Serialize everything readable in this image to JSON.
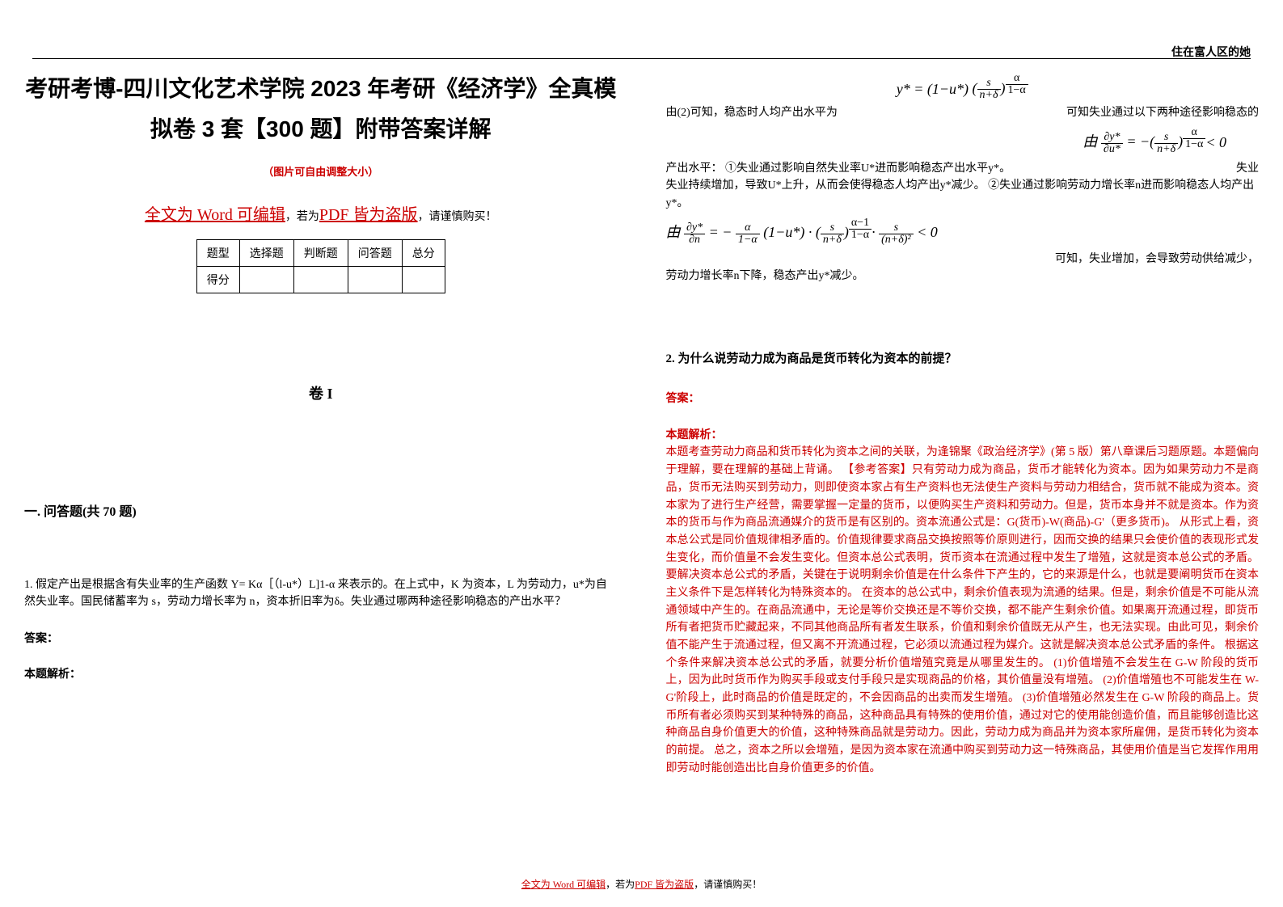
{
  "header": {
    "author": "住在富人区的她"
  },
  "title": {
    "line": "考研考博-四川文化艺术学院 2023 年考研《经济学》全真模拟卷 3 套【300 题】附带答案详解"
  },
  "subtitle": "（图片可自由调整大小）",
  "warning": {
    "part1": "全文为 Word 可编辑",
    "part2": "，若为",
    "part3": "PDF 皆为盗版",
    "part4": "，请谨慎购买！"
  },
  "score_table": {
    "headers": [
      "题型",
      "选择题",
      "判断题",
      "问答题",
      "总分"
    ],
    "row_label": "得分"
  },
  "volume": "卷 I",
  "section1": "一. 问答题(共 70 题)",
  "q1": {
    "text": "1. 假定产出是根据含有失业率的生产函数 Y= Kα［（l-u*）L]1-α 来表示的。在上式中，K 为资本，L 为劳动力，u*为自然失业率。国民储蓄率为 s，劳动力增长率为 n，资本折旧率为δ。失业通过哪两种途径影响稳态的产出水平？",
    "answer_label": "答案：",
    "analysis_label": "本题解析："
  },
  "right": {
    "t1": "由(2)可知，稳态时人均产出水平为",
    "f1": "y* = (1−u*) ( s / (n+δ) )^(α/(1−α))",
    "t1b": "可知失业通过以下两种途径影响稳态的",
    "f2": "由 ∂y*/∂u* = −( s/(n+δ) )^(α/(1−α)) < 0",
    "t2": "产出水平： ①失业通过影响自然失业率U*进而影响稳态产出水平y*。",
    "t2b": "失业持续增加，导致U*上升，从而会使得稳态人均产出y*减少。 ②失业通过影响劳动力增长率n进而影响稳态人均产出y*。",
    "f3": "由 ∂y*/∂n = − (α/(1−α)) (1−u*) · ( s/(n+δ) )^((α−1)/(1−α)) · s/(n+δ)² < 0",
    "t3": "可知，失业增加，会导致劳动供给减少，",
    "t4": "劳动力增长率n下降，稳态产出y*减少。"
  },
  "q2": {
    "title": "2. 为什么说劳动力成为商品是货币转化为资本的前提？",
    "answer_label": "答案：",
    "analysis_label": "本题解析：",
    "body": "本题考查劳动力商品和货币转化为资本之间的关联，为逢锦聚《政治经济学》(第 5 版）第八章课后习题原题。本题偏向于理解，要在理解的基础上背诵。 【参考答案】只有劳动力成为商品，货币才能转化为资本。因为如果劳动力不是商品，货币无法购买到劳动力，则即使资本家占有生产资料也无法使生产资料与劳动力相结合，货币就不能成为资本。资本家为了进行生产经营，需要掌握一定量的货币，以便购买生产资料和劳动力。但是，货币本身并不就是资本。作为资本的货币与作为商品流通媒介的货币是有区别的。资本流通公式是：G(货币)-W(商品)-G'（更多货币)。 从形式上看，资本总公式是同价值规律相矛盾的。价值规律要求商品交换按照等价原则进行，因而交换的结果只会使价值的表现形式发生变化，而价值量不会发生变化。但资本总公式表明，货币资本在流通过程中发生了增殖，这就是资本总公式的矛盾。要解决资本总公式的矛盾，关键在于说明剩余价值是在什么条件下产生的，它的来源是什么，也就是要阐明货币在资本主义条件下是怎样转化为特殊资本的。 在资本的总公式中，剩余价值表现为流通的结果。但是，剩余价值是不可能从流通领域中产生的。在商品流通中，无论是等价交换还是不等价交换，都不能产生剩余价值。如果离开流通过程，即货币所有者把货币贮藏起来，不同其他商品所有者发生联系，价值和剩余价值既无从产生，也无法实现。由此可见，剩余价值不能产生于流通过程，但又离不开流通过程，它必须以流通过程为媒介。这就是解决资本总公式矛盾的条件。 根据这个条件来解决资本总公式的矛盾，就要分析价值增殖究竟是从哪里发生的。 (1)价值增殖不会发生在 G-W 阶段的货币上，因为此时货币作为购买手段或支付手段只是实现商品的价格，其价值量没有增殖。 (2)价值增殖也不可能发生在 W-G'阶段上，此时商品的价值是既定的，不会因商品的出卖而发生增殖。 (3)价值增殖必然发生在 G-W 阶段的商品上。货币所有者必须购买到某种特殊的商品，这种商品具有特殊的使用价值，通过对它的使用能创造价值，而且能够创造比这种商品自身价值更大的价值，这种特殊商品就是劳动力。因此，劳动力成为商品并为资本家所雇佣，是货币转化为资本的前提。 总之，资本之所以会增殖，是因为资本家在流通中购买到劳动力这一特殊商品，其使用价值是当它发挥作用用即劳动时能创造出比自身价值更多的价值。"
  },
  "footer": {
    "p1": "全文为 Word 可编辑",
    "p2": "，若为",
    "p3": "PDF 皆为盗版",
    "p4": "，请谨慎购买！"
  },
  "colors": {
    "red": "#cc0000",
    "black": "#000000",
    "background": "#ffffff"
  }
}
